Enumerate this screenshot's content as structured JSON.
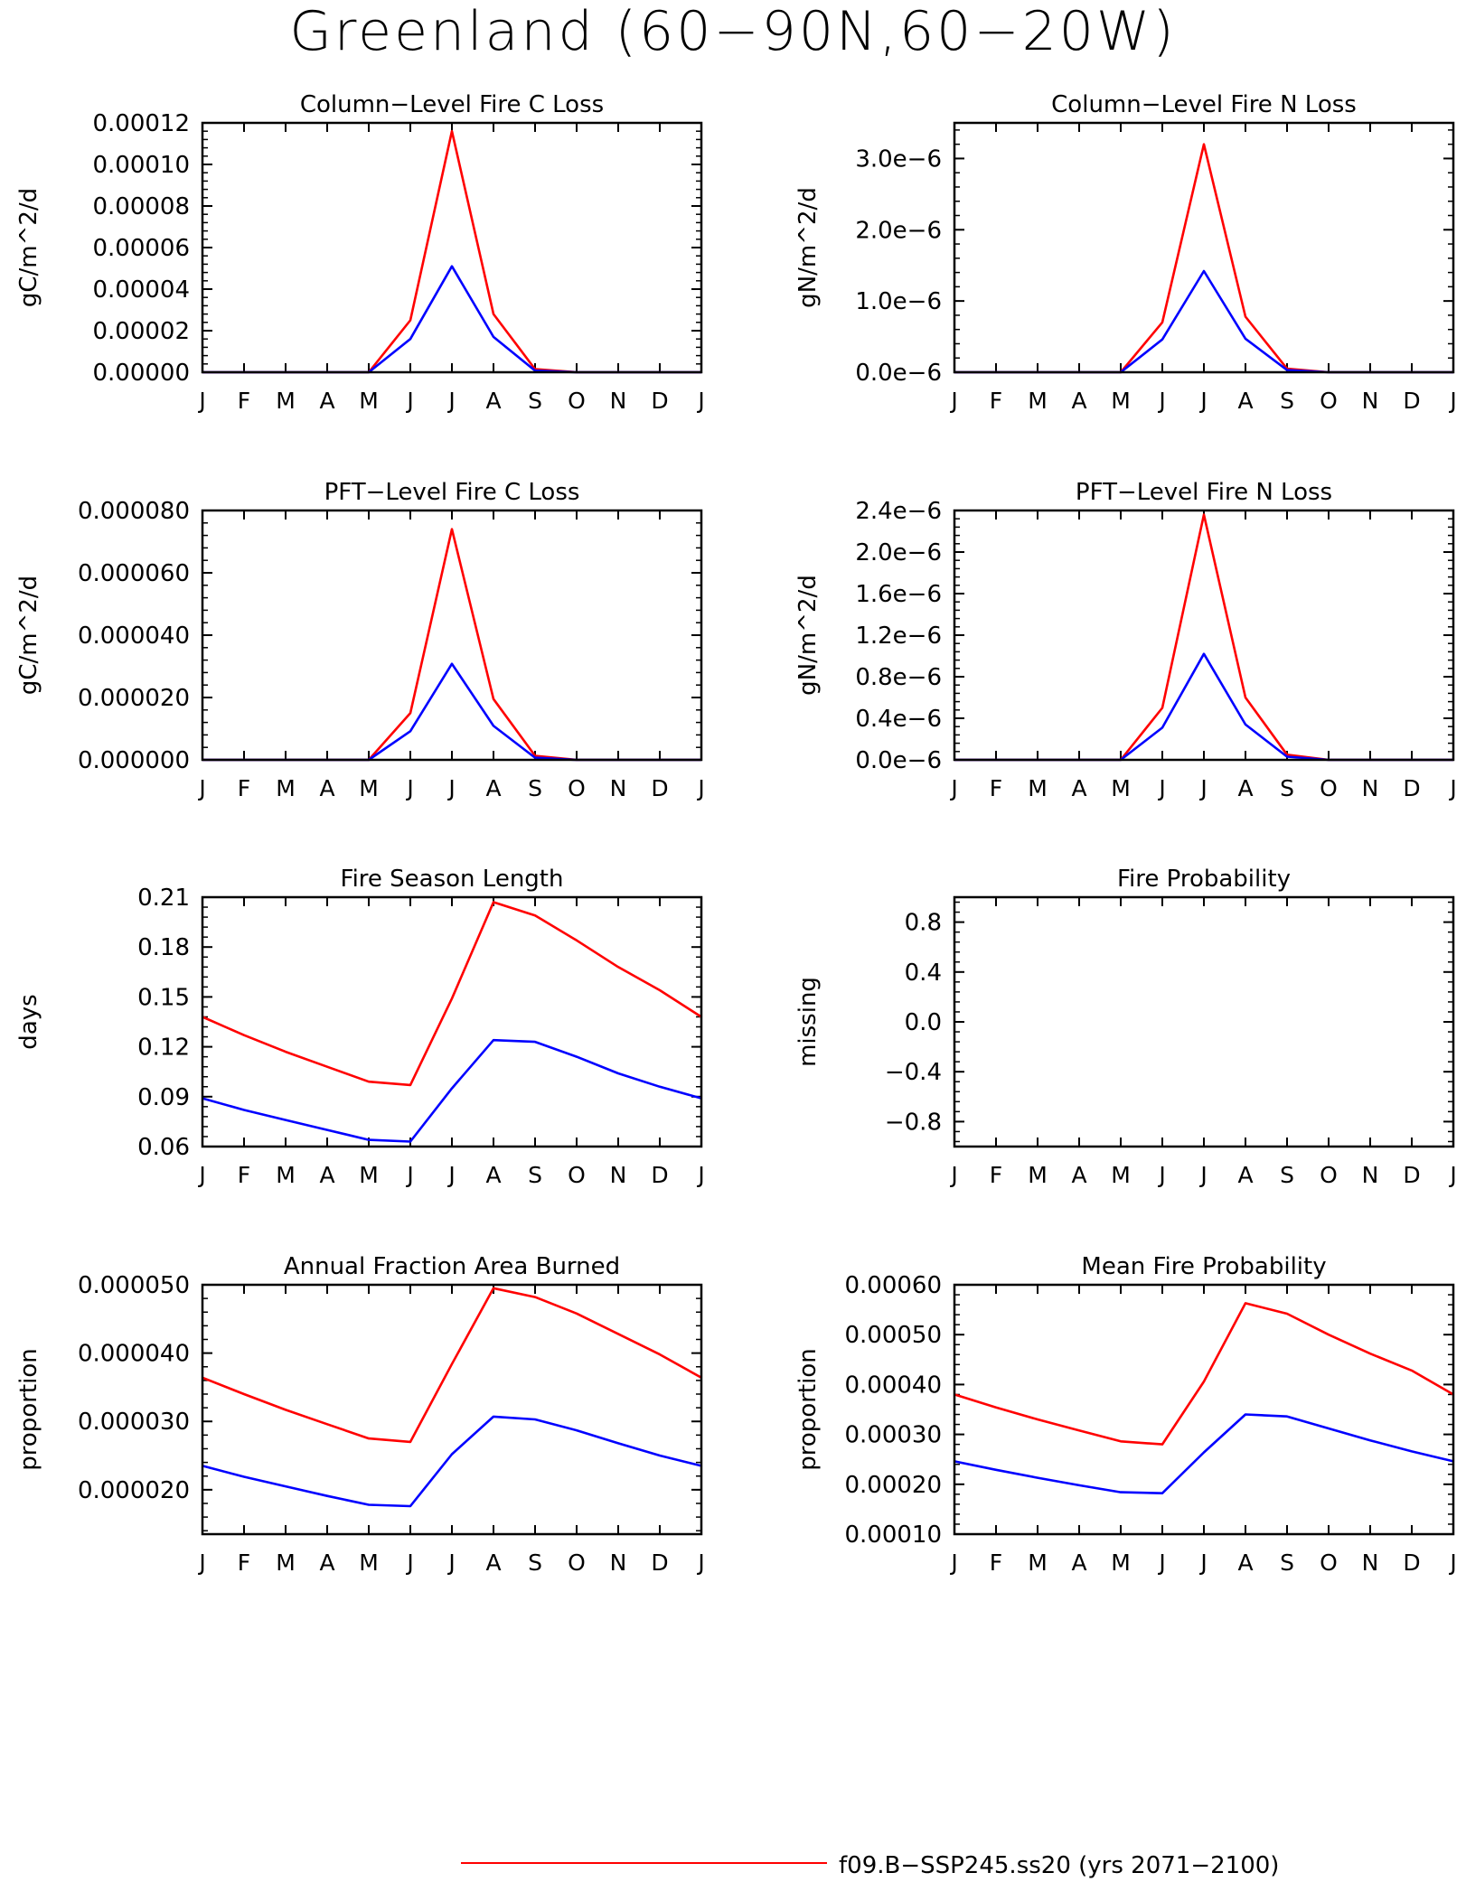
{
  "figure": {
    "title": "Greenland (60−90N,60−20W)",
    "legend": {
      "label": "f09.B−SSP245.ss20 (yrs 2071−2100)",
      "color": "#ff0000"
    }
  },
  "colors": {
    "series_red": "#ff0000",
    "series_blue": "#0000ff"
  },
  "chart_data": [
    {
      "type": "line",
      "title": "Column−Level Fire C Loss",
      "ylabel": "gC/m^2/d",
      "categories": [
        "J",
        "F",
        "M",
        "A",
        "M",
        "J",
        "J",
        "A",
        "S",
        "O",
        "N",
        "D",
        "J"
      ],
      "ylim": [
        0,
        0.00012
      ],
      "yticks": [
        0,
        2e-05,
        4e-05,
        6e-05,
        8e-05,
        0.0001,
        0.00012
      ],
      "ytick_labels": [
        "0.00000",
        "0.00002",
        "0.00004",
        "0.00006",
        "0.00008",
        "0.00010",
        "0.00012"
      ],
      "series": [
        {
          "color": "#ff0000",
          "values": [
            0,
            0,
            0,
            0,
            0,
            2.5e-05,
            0.000116,
            2.8e-05,
            1.5e-06,
            0,
            0,
            0,
            0
          ]
        },
        {
          "color": "#0000ff",
          "values": [
            0,
            0,
            0,
            0,
            0,
            1.6e-05,
            5.1e-05,
            1.7e-05,
            8e-07,
            0,
            0,
            0,
            0
          ]
        }
      ]
    },
    {
      "type": "line",
      "title": "Column−Level Fire N Loss",
      "ylabel": "gN/m^2/d",
      "categories": [
        "J",
        "F",
        "M",
        "A",
        "M",
        "J",
        "J",
        "A",
        "S",
        "O",
        "N",
        "D",
        "J"
      ],
      "ylim": [
        0,
        3.5e-06
      ],
      "yticks": [
        0,
        1e-06,
        2e-06,
        3e-06
      ],
      "ytick_labels": [
        "0.0e−6",
        "1.0e−6",
        "2.0e−6",
        "3.0e−6"
      ],
      "series": [
        {
          "color": "#ff0000",
          "values": [
            0,
            0,
            0,
            0,
            0,
            7e-07,
            3.2e-06,
            7.8e-07,
            5e-08,
            0,
            0,
            0,
            0
          ]
        },
        {
          "color": "#0000ff",
          "values": [
            0,
            0,
            0,
            0,
            0,
            4.6e-07,
            1.42e-06,
            4.7e-07,
            3e-08,
            0,
            0,
            0,
            0
          ]
        }
      ]
    },
    {
      "type": "line",
      "title": "PFT−Level Fire C Loss",
      "ylabel": "gC/m^2/d",
      "categories": [
        "J",
        "F",
        "M",
        "A",
        "M",
        "J",
        "J",
        "A",
        "S",
        "O",
        "N",
        "D",
        "J"
      ],
      "ylim": [
        0,
        8e-05
      ],
      "yticks": [
        0,
        2e-05,
        4e-05,
        6e-05,
        8e-05
      ],
      "ytick_labels": [
        "0.000000",
        "0.000020",
        "0.000040",
        "0.000060",
        "0.000080"
      ],
      "series": [
        {
          "color": "#ff0000",
          "values": [
            0,
            0,
            0,
            0,
            0,
            1.5e-05,
            7.4e-05,
            1.95e-05,
            1.3e-06,
            0,
            0,
            0,
            0
          ]
        },
        {
          "color": "#0000ff",
          "values": [
            0,
            0,
            0,
            0,
            0,
            9.2e-06,
            3.08e-05,
            1.09e-05,
            7e-07,
            0,
            0,
            0,
            0
          ]
        }
      ]
    },
    {
      "type": "line",
      "title": "PFT−Level Fire N Loss",
      "ylabel": "gN/m^2/d",
      "categories": [
        "J",
        "F",
        "M",
        "A",
        "M",
        "J",
        "J",
        "A",
        "S",
        "O",
        "N",
        "D",
        "J"
      ],
      "ylim": [
        0,
        2.4e-06
      ],
      "yticks": [
        0,
        4e-07,
        8e-07,
        1.2e-06,
        1.6e-06,
        2e-06,
        2.4e-06
      ],
      "ytick_labels": [
        "0.0e−6",
        "0.4e−6",
        "0.8e−6",
        "1.2e−6",
        "1.6e−6",
        "2.0e−6",
        "2.4e−6"
      ],
      "series": [
        {
          "color": "#ff0000",
          "values": [
            0,
            0,
            0,
            0,
            0,
            5e-07,
            2.36e-06,
            6e-07,
            5e-08,
            0,
            0,
            0,
            0
          ]
        },
        {
          "color": "#0000ff",
          "values": [
            0,
            0,
            0,
            0,
            0,
            3.1e-07,
            1.02e-06,
            3.4e-07,
            3e-08,
            0,
            0,
            0,
            0
          ]
        }
      ]
    },
    {
      "type": "line",
      "title": "Fire Season Length",
      "ylabel": "days",
      "categories": [
        "J",
        "F",
        "M",
        "A",
        "M",
        "J",
        "J",
        "A",
        "S",
        "O",
        "N",
        "D",
        "J"
      ],
      "ylim": [
        0.06,
        0.21
      ],
      "yticks": [
        0.06,
        0.09,
        0.12,
        0.15,
        0.18,
        0.21
      ],
      "ytick_labels": [
        "0.06",
        "0.09",
        "0.12",
        "0.15",
        "0.18",
        "0.21"
      ],
      "series": [
        {
          "color": "#ff0000",
          "values": [
            0.138,
            0.127,
            0.117,
            0.108,
            0.099,
            0.097,
            0.149,
            0.207,
            0.199,
            0.184,
            0.168,
            0.154,
            0.138
          ]
        },
        {
          "color": "#0000ff",
          "values": [
            0.089,
            0.082,
            0.076,
            0.07,
            0.064,
            0.063,
            0.095,
            0.124,
            0.123,
            0.114,
            0.104,
            0.096,
            0.089
          ]
        }
      ]
    },
    {
      "type": "line",
      "title": "Fire Probability",
      "ylabel": "missing",
      "categories": [
        "J",
        "F",
        "M",
        "A",
        "M",
        "J",
        "J",
        "A",
        "S",
        "O",
        "N",
        "D",
        "J"
      ],
      "ylim": [
        -1.0,
        1.0
      ],
      "yticks": [
        -0.8,
        -0.4,
        0.0,
        0.4,
        0.8
      ],
      "ytick_labels": [
        "−0.8",
        "−0.4",
        "0.0",
        "0.4",
        "0.8"
      ],
      "series": []
    },
    {
      "type": "line",
      "title": "Annual Fraction Area Burned",
      "ylabel": "proportion",
      "categories": [
        "J",
        "F",
        "M",
        "A",
        "M",
        "J",
        "J",
        "A",
        "S",
        "O",
        "N",
        "D",
        "J"
      ],
      "ylim": [
        1.35e-05,
        5e-05
      ],
      "yticks": [
        2e-05,
        3e-05,
        4e-05,
        5e-05
      ],
      "ytick_labels": [
        "0.000020",
        "0.000030",
        "0.000040",
        "0.000050"
      ],
      "series": [
        {
          "color": "#ff0000",
          "values": [
            3.64e-05,
            3.4e-05,
            3.17e-05,
            2.96e-05,
            2.75e-05,
            2.7e-05,
            3.84e-05,
            4.95e-05,
            4.82e-05,
            4.58e-05,
            4.28e-05,
            3.98e-05,
            3.64e-05
          ]
        },
        {
          "color": "#0000ff",
          "values": [
            2.35e-05,
            2.19e-05,
            2.05e-05,
            1.91e-05,
            1.78e-05,
            1.76e-05,
            2.52e-05,
            3.07e-05,
            3.03e-05,
            2.87e-05,
            2.68e-05,
            2.5e-05,
            2.35e-05
          ]
        }
      ]
    },
    {
      "type": "line",
      "title": "Mean Fire Probability",
      "ylabel": "proportion",
      "categories": [
        "J",
        "F",
        "M",
        "A",
        "M",
        "J",
        "J",
        "A",
        "S",
        "O",
        "N",
        "D",
        "J"
      ],
      "ylim": [
        0.0001,
        0.0006
      ],
      "yticks": [
        0.0001,
        0.0002,
        0.0003,
        0.0004,
        0.0005,
        0.0006
      ],
      "ytick_labels": [
        "0.00010",
        "0.00020",
        "0.00030",
        "0.00040",
        "0.00050",
        "0.00060"
      ],
      "series": [
        {
          "color": "#ff0000",
          "values": [
            0.00038,
            0.000354,
            0.00033,
            0.000308,
            0.000286,
            0.00028,
            0.000406,
            0.000563,
            0.000542,
            0.0005,
            0.000462,
            0.000428,
            0.00038
          ]
        },
        {
          "color": "#0000ff",
          "values": [
            0.000246,
            0.000229,
            0.000213,
            0.000198,
            0.000184,
            0.000182,
            0.000264,
            0.00034,
            0.000336,
            0.000312,
            0.000288,
            0.000266,
            0.000246
          ]
        }
      ]
    }
  ]
}
